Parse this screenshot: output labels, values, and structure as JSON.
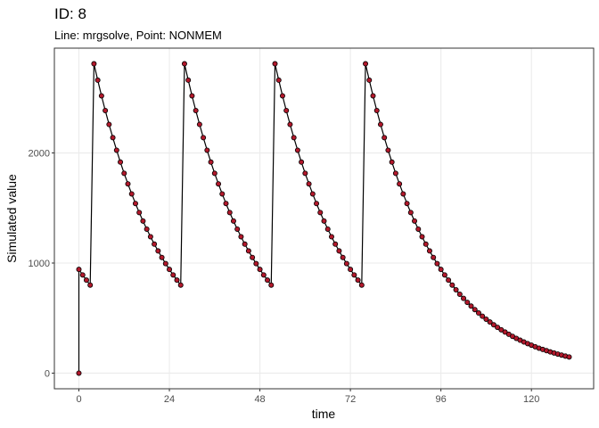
{
  "chart_data": {
    "type": "line",
    "title": "ID: 8",
    "subtitle": "Line: mrgsolve, Point: NONMEM",
    "x_label": "time",
    "y_label": "Simulated value",
    "xlim": [
      -6.5,
      136.5
    ],
    "ylim": [
      -142,
      2952
    ],
    "xticks": [
      0,
      24,
      48,
      72,
      96,
      120
    ],
    "yticks": [
      0,
      1000,
      2000
    ],
    "grid": true,
    "line_color": "#000000",
    "point_color": "#b2182b",
    "x": [
      0,
      0,
      1,
      2,
      3,
      4,
      5,
      6,
      7,
      8,
      9,
      10,
      11,
      12,
      13,
      14,
      15,
      16,
      17,
      18,
      19,
      20,
      21,
      22,
      23,
      24,
      25,
      26,
      27,
      28,
      29,
      30,
      31,
      32,
      33,
      34,
      35,
      36,
      37,
      38,
      39,
      40,
      41,
      42,
      43,
      44,
      45,
      46,
      47,
      48,
      49,
      50,
      51,
      52,
      53,
      54,
      55,
      56,
      57,
      58,
      59,
      60,
      61,
      62,
      63,
      64,
      65,
      66,
      67,
      68,
      69,
      70,
      71,
      72,
      73,
      74,
      75,
      76,
      77,
      78,
      79,
      80,
      81,
      82,
      83,
      84,
      85,
      86,
      87,
      88,
      89,
      90,
      91,
      92,
      93,
      94,
      95,
      96,
      97,
      98,
      99,
      100,
      101,
      102,
      103,
      104,
      105,
      106,
      107,
      108,
      109,
      110,
      111,
      112,
      113,
      114,
      115,
      116,
      117,
      118,
      119,
      120,
      121,
      122,
      123,
      124,
      125,
      126,
      127,
      128,
      129,
      130
    ],
    "values": [
      0,
      942,
      892,
      845,
      800,
      2810,
      2661,
      2519,
      2385,
      2259,
      2139,
      2025,
      1917,
      1815,
      1719,
      1628,
      1541,
      1459,
      1382,
      1308,
      1239,
      1172,
      1110,
      1051,
      995,
      942,
      892,
      845,
      800,
      2810,
      2661,
      2519,
      2385,
      2259,
      2139,
      2025,
      1917,
      1815,
      1719,
      1628,
      1541,
      1459,
      1382,
      1308,
      1239,
      1172,
      1110,
      1051,
      995,
      942,
      892,
      845,
      800,
      2810,
      2661,
      2519,
      2385,
      2259,
      2139,
      2025,
      1917,
      1815,
      1719,
      1628,
      1541,
      1459,
      1382,
      1308,
      1239,
      1172,
      1110,
      1051,
      995,
      942,
      892,
      845,
      800,
      2810,
      2661,
      2519,
      2385,
      2259,
      2139,
      2025,
      1917,
      1815,
      1719,
      1628,
      1541,
      1459,
      1382,
      1308,
      1239,
      1172,
      1110,
      1051,
      995,
      942,
      892,
      845,
      800,
      757,
      717,
      679,
      643,
      609,
      577,
      546,
      517,
      490,
      464,
      439,
      416,
      394,
      373,
      353,
      334,
      316,
      299,
      283,
      268,
      254,
      240,
      227,
      215,
      204,
      193,
      183,
      173,
      164,
      155,
      147
    ]
  }
}
